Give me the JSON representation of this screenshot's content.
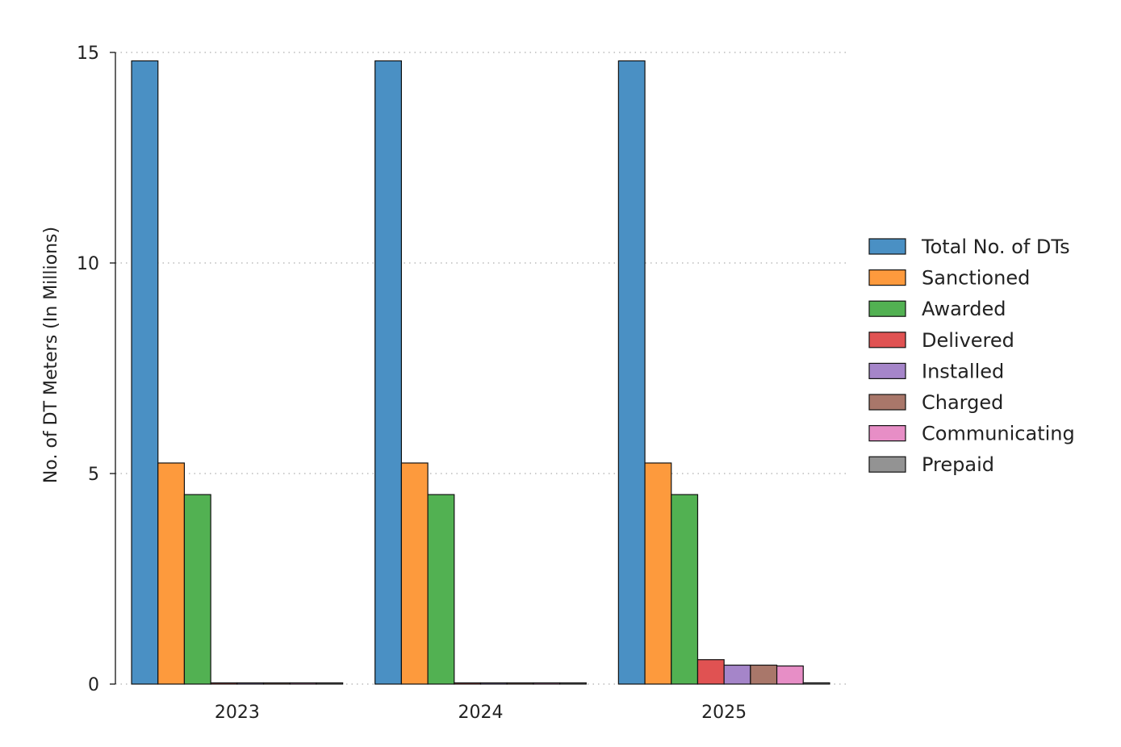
{
  "chart_data": {
    "type": "bar",
    "title": "",
    "xlabel": "",
    "ylabel": "No. of DT Meters (In Millions)",
    "ylim": [
      0,
      15
    ],
    "yticks": [
      0,
      5,
      10,
      15
    ],
    "grid": "horizontal dotted",
    "legend_position": "right",
    "categories": [
      "2023",
      "2024",
      "2025"
    ],
    "series": [
      {
        "name": "Total No. of DTs",
        "color": "#4a90c4",
        "values": [
          14.8,
          14.8,
          14.8
        ]
      },
      {
        "name": "Sanctioned",
        "color": "#fd9a3d",
        "values": [
          5.25,
          5.25,
          5.25
        ]
      },
      {
        "name": "Awarded",
        "color": "#52b152",
        "values": [
          4.5,
          4.5,
          4.5
        ]
      },
      {
        "name": "Delivered",
        "color": "#e05252",
        "values": [
          0.01,
          0.01,
          0.58
        ]
      },
      {
        "name": "Installed",
        "color": "#a585c9",
        "values": [
          0.01,
          0.01,
          0.45
        ]
      },
      {
        "name": "Charged",
        "color": "#a9776a",
        "values": [
          0.01,
          0.01,
          0.45
        ]
      },
      {
        "name": "Communicating",
        "color": "#e78ec6",
        "values": [
          0.01,
          0.01,
          0.43
        ]
      },
      {
        "name": "Prepaid",
        "color": "#939393",
        "values": [
          0.01,
          0.01,
          0.03
        ]
      }
    ]
  }
}
